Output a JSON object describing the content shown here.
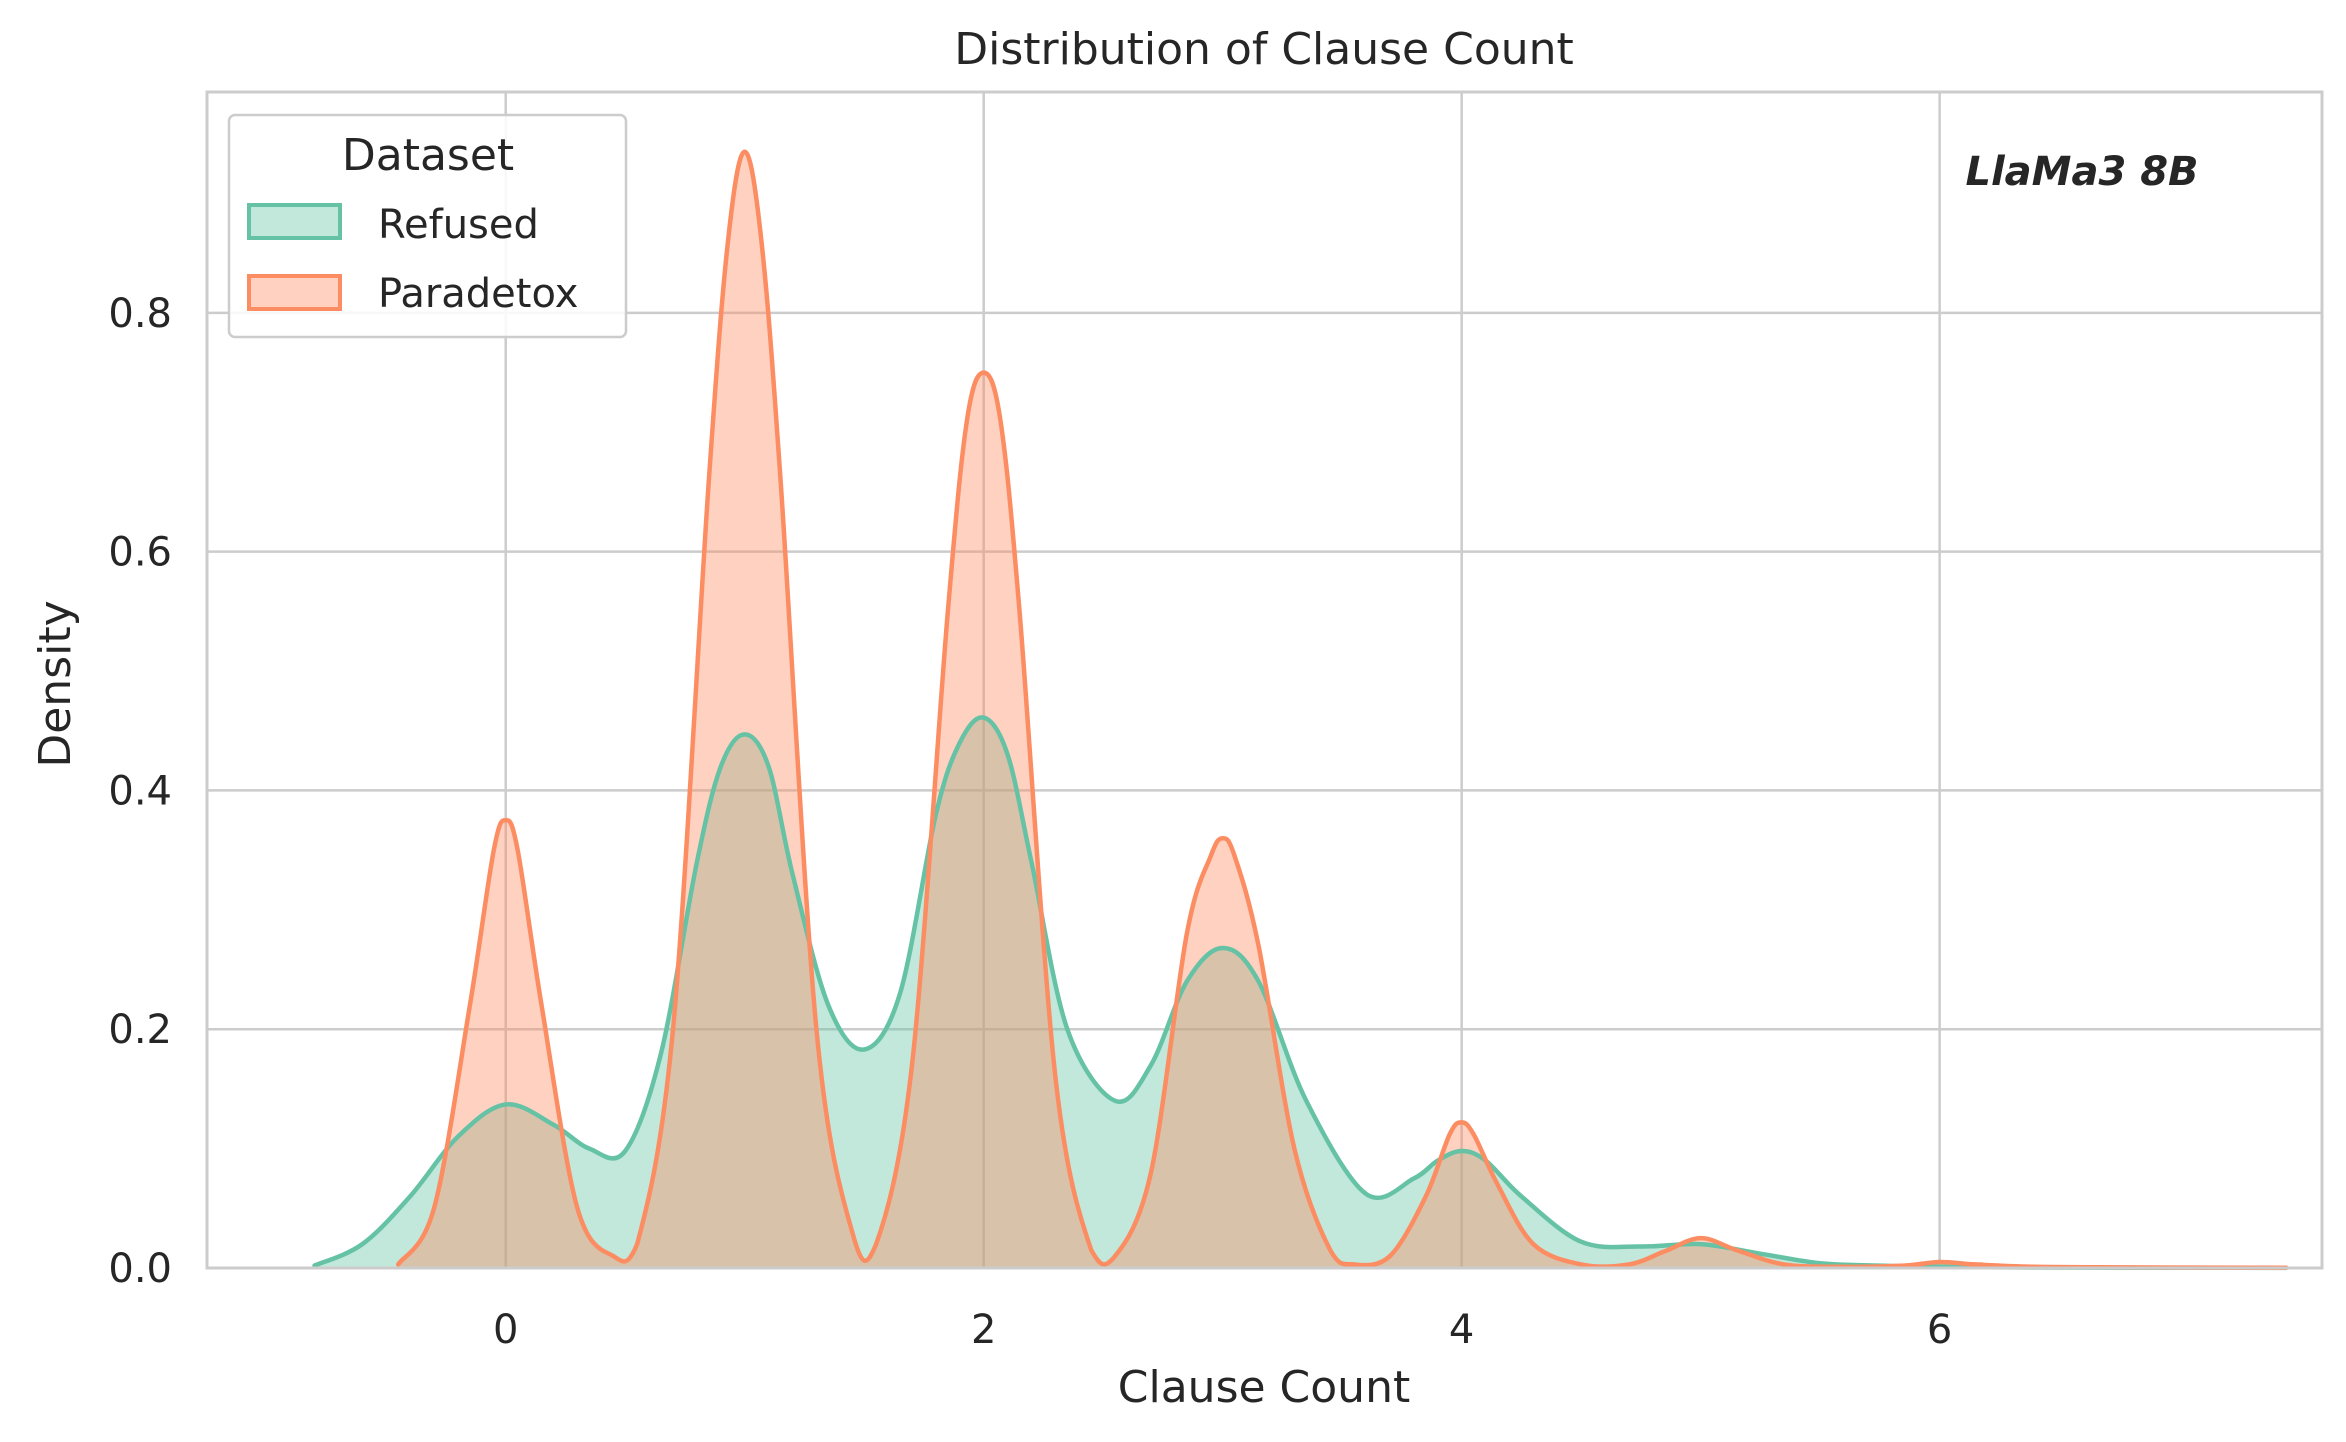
{
  "chart_data": {
    "type": "area",
    "title": "Distribution of Clause Count",
    "xlabel": "Clause Count",
    "ylabel": "Density",
    "xlim": [
      -1.25,
      7.6
    ],
    "ylim": [
      0,
      0.985
    ],
    "xticks": [
      0,
      2,
      4,
      6
    ],
    "yticks": [
      0.0,
      0.2,
      0.4,
      0.6,
      0.8
    ],
    "xtick_labels": [
      "0",
      "2",
      "4",
      "6"
    ],
    "ytick_labels": [
      "0.0",
      "0.2",
      "0.4",
      "0.6",
      "0.8"
    ],
    "grid": true,
    "legend": {
      "title": "Dataset",
      "placement": "top-left"
    },
    "annotation": "LlaMa3 8B",
    "series": [
      {
        "name": "Refused",
        "color": "#66c2a5",
        "x": [
          -0.8,
          -0.6,
          -0.4,
          -0.2,
          0.0,
          0.2,
          0.35,
          0.5,
          0.65,
          0.8,
          0.9,
          1.0,
          1.1,
          1.2,
          1.35,
          1.5,
          1.65,
          1.8,
          1.9,
          2.0,
          2.1,
          2.2,
          2.35,
          2.55,
          2.7,
          2.85,
          3.0,
          3.15,
          3.35,
          3.6,
          3.8,
          3.9,
          4.0,
          4.1,
          4.25,
          4.5,
          4.75,
          5.0,
          5.25,
          5.5,
          5.75,
          6.0,
          6.3,
          6.6,
          7.0,
          7.45
        ],
        "y": [
          0.002,
          0.02,
          0.06,
          0.11,
          0.137,
          0.12,
          0.1,
          0.098,
          0.18,
          0.34,
          0.42,
          0.447,
          0.42,
          0.33,
          0.22,
          0.183,
          0.23,
          0.38,
          0.44,
          0.461,
          0.43,
          0.34,
          0.2,
          0.14,
          0.17,
          0.24,
          0.268,
          0.24,
          0.14,
          0.062,
          0.075,
          0.09,
          0.098,
          0.09,
          0.06,
          0.022,
          0.018,
          0.02,
          0.012,
          0.004,
          0.002,
          0.001,
          0.0005,
          0.0003,
          0.0002,
          0.0001
        ]
      },
      {
        "name": "Paradetox",
        "color": "#fc8d62",
        "x": [
          -0.45,
          -0.3,
          -0.15,
          -0.05,
          0.0,
          0.05,
          0.15,
          0.3,
          0.45,
          0.55,
          0.7,
          0.85,
          0.93,
          1.0,
          1.07,
          1.15,
          1.3,
          1.45,
          1.55,
          1.7,
          1.85,
          1.93,
          2.0,
          2.07,
          2.15,
          2.3,
          2.45,
          2.55,
          2.7,
          2.85,
          2.95,
          3.0,
          3.05,
          3.15,
          3.3,
          3.45,
          3.55,
          3.7,
          3.85,
          3.95,
          4.0,
          4.05,
          4.15,
          4.3,
          4.5,
          4.7,
          4.85,
          5.0,
          5.15,
          5.35,
          5.6,
          5.85,
          6.0,
          6.15,
          6.4,
          6.8,
          7.45
        ],
        "y": [
          0.003,
          0.05,
          0.22,
          0.35,
          0.375,
          0.35,
          0.22,
          0.05,
          0.01,
          0.02,
          0.2,
          0.66,
          0.86,
          0.935,
          0.86,
          0.66,
          0.2,
          0.03,
          0.02,
          0.17,
          0.55,
          0.71,
          0.75,
          0.71,
          0.55,
          0.16,
          0.015,
          0.01,
          0.08,
          0.28,
          0.345,
          0.36,
          0.345,
          0.27,
          0.1,
          0.015,
          0.003,
          0.01,
          0.06,
          0.112,
          0.122,
          0.112,
          0.07,
          0.02,
          0.003,
          0.003,
          0.014,
          0.025,
          0.015,
          0.003,
          0.001,
          0.002,
          0.005,
          0.003,
          0.001,
          0.0005,
          0.0002
        ]
      }
    ]
  }
}
